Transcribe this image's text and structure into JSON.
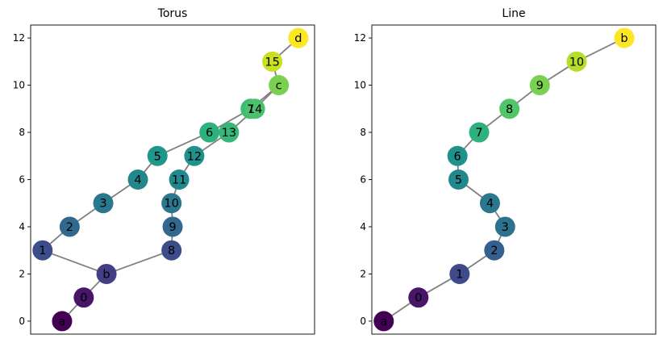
{
  "chart_data": [
    {
      "type": "network",
      "title": "Torus",
      "xlabel": "",
      "ylabel": "",
      "ylim": [
        -0.55,
        12.55
      ],
      "xlim": [
        -0.55,
        12.55
      ],
      "yticks": [
        0,
        2,
        4,
        6,
        8,
        10,
        12
      ],
      "show_xticks": false,
      "nodes": [
        {
          "label": "a",
          "x": 0.9,
          "y": 0,
          "color": "#440154"
        },
        {
          "label": "0",
          "x": 1.9,
          "y": 1,
          "color": "#481668"
        },
        {
          "label": "b",
          "x": 2.95,
          "y": 2,
          "color": "#433e85"
        },
        {
          "label": "1",
          "x": 0,
          "y": 3,
          "color": "#3d4d8a"
        },
        {
          "label": "2",
          "x": 1.25,
          "y": 4,
          "color": "#31688e"
        },
        {
          "label": "3",
          "x": 2.8,
          "y": 5,
          "color": "#2a788e"
        },
        {
          "label": "4",
          "x": 4.4,
          "y": 6,
          "color": "#23888e"
        },
        {
          "label": "5",
          "x": 5.3,
          "y": 7,
          "color": "#1f978b"
        },
        {
          "label": "6",
          "x": 7.7,
          "y": 8,
          "color": "#2db27d"
        },
        {
          "label": "7",
          "x": 9.6,
          "y": 9,
          "color": "#3fbc73"
        },
        {
          "label": "8",
          "x": 5.95,
          "y": 3,
          "color": "#3d4d8a"
        },
        {
          "label": "9",
          "x": 6.0,
          "y": 4,
          "color": "#31688e"
        },
        {
          "label": "10",
          "x": 5.95,
          "y": 5,
          "color": "#2a788e"
        },
        {
          "label": "11",
          "x": 6.3,
          "y": 6,
          "color": "#23888e"
        },
        {
          "label": "12",
          "x": 7.0,
          "y": 7,
          "color": "#21918c"
        },
        {
          "label": "13",
          "x": 8.6,
          "y": 8,
          "color": "#35b779"
        },
        {
          "label": "14",
          "x": 9.8,
          "y": 9,
          "color": "#4ac16d"
        },
        {
          "label": "c",
          "x": 10.9,
          "y": 10,
          "color": "#7ad151"
        },
        {
          "label": "15",
          "x": 10.6,
          "y": 11,
          "color": "#c8e020"
        },
        {
          "label": "d",
          "x": 11.8,
          "y": 12,
          "color": "#fde725"
        }
      ],
      "edges": [
        [
          "a",
          "0"
        ],
        [
          "0",
          "b"
        ],
        [
          "b",
          "1"
        ],
        [
          "1",
          "2"
        ],
        [
          "2",
          "3"
        ],
        [
          "3",
          "4"
        ],
        [
          "4",
          "5"
        ],
        [
          "5",
          "6"
        ],
        [
          "6",
          "7"
        ],
        [
          "b",
          "8"
        ],
        [
          "8",
          "9"
        ],
        [
          "9",
          "10"
        ],
        [
          "10",
          "11"
        ],
        [
          "11",
          "12"
        ],
        [
          "12",
          "13"
        ],
        [
          "13",
          "14"
        ],
        [
          "7",
          "c"
        ],
        [
          "14",
          "c"
        ],
        [
          "c",
          "15"
        ],
        [
          "15",
          "d"
        ]
      ]
    },
    {
      "type": "network",
      "title": "Line",
      "xlabel": "",
      "ylabel": "",
      "ylim": [
        -0.55,
        12.55
      ],
      "xlim": [
        -0.55,
        12.55
      ],
      "yticks": [
        0,
        2,
        4,
        6,
        8,
        10,
        12
      ],
      "show_xticks": false,
      "nodes": [
        {
          "label": "a",
          "x": 0,
          "y": 0,
          "color": "#440154"
        },
        {
          "label": "0",
          "x": 1.6,
          "y": 1,
          "color": "#481668"
        },
        {
          "label": "1",
          "x": 3.5,
          "y": 2,
          "color": "#3e4a89"
        },
        {
          "label": "2",
          "x": 5.1,
          "y": 3,
          "color": "#355f8d"
        },
        {
          "label": "3",
          "x": 5.6,
          "y": 4,
          "color": "#2c718e"
        },
        {
          "label": "4",
          "x": 4.9,
          "y": 5,
          "color": "#2a788e"
        },
        {
          "label": "5",
          "x": 3.45,
          "y": 6,
          "color": "#23888e"
        },
        {
          "label": "6",
          "x": 3.4,
          "y": 7,
          "color": "#21918c"
        },
        {
          "label": "7",
          "x": 4.4,
          "y": 8,
          "color": "#2db27d"
        },
        {
          "label": "8",
          "x": 5.8,
          "y": 9,
          "color": "#52c569"
        },
        {
          "label": "9",
          "x": 7.2,
          "y": 10,
          "color": "#7ad151"
        },
        {
          "label": "10",
          "x": 8.9,
          "y": 11,
          "color": "#b5de2b"
        },
        {
          "label": "b",
          "x": 11.1,
          "y": 12,
          "color": "#fde725"
        }
      ],
      "edges": [
        [
          "a",
          "0"
        ],
        [
          "0",
          "1"
        ],
        [
          "1",
          "2"
        ],
        [
          "2",
          "3"
        ],
        [
          "3",
          "4"
        ],
        [
          "4",
          "5"
        ],
        [
          "5",
          "6"
        ],
        [
          "6",
          "7"
        ],
        [
          "7",
          "8"
        ],
        [
          "8",
          "9"
        ],
        [
          "9",
          "10"
        ],
        [
          "10",
          "b"
        ]
      ]
    }
  ]
}
